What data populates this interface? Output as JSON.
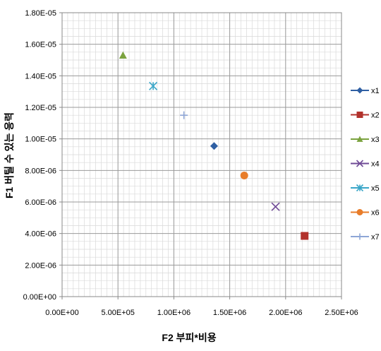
{
  "chart_data": {
    "type": "scatter",
    "title": "",
    "xlabel": "F2 부피*비용",
    "ylabel": "F1 버틸 수 있는 응력",
    "xlim": [
      0,
      2500000
    ],
    "ylim": [
      0,
      1.8e-05
    ],
    "x_ticks": [
      "0.00E+00",
      "5.00E+05",
      "1.00E+06",
      "1.50E+06",
      "2.00E+06",
      "2.50E+06"
    ],
    "y_ticks": [
      "0.00E+00",
      "2.00E-06",
      "4.00E-06",
      "6.00E-06",
      "8.00E-06",
      "1.00E-05",
      "1.20E-05",
      "1.40E-05",
      "1.60E-05",
      "1.80E-05"
    ],
    "grid": true,
    "legend_position": "right",
    "series": [
      {
        "name": "x1",
        "marker": "diamond",
        "color": "#2e5fa3",
        "x": 1360000,
        "y": 9.55e-06
      },
      {
        "name": "x2",
        "marker": "square",
        "color": "#b2322c",
        "x": 2170000,
        "y": 3.85e-06
      },
      {
        "name": "x3",
        "marker": "triangle",
        "color": "#7ba23f",
        "x": 545000,
        "y": 1.53e-05
      },
      {
        "name": "x4",
        "marker": "x",
        "color": "#6f4a96",
        "x": 1910000,
        "y": 5.7e-06
      },
      {
        "name": "x5",
        "marker": "star",
        "color": "#3aa6c8",
        "x": 815000,
        "y": 1.335e-05
      },
      {
        "name": "x6",
        "marker": "circle",
        "color": "#e87d2a",
        "x": 1630000,
        "y": 7.68e-06
      },
      {
        "name": "x7",
        "marker": "plus",
        "color": "#8ea6d6",
        "x": 1090000,
        "y": 1.15e-05
      }
    ]
  }
}
